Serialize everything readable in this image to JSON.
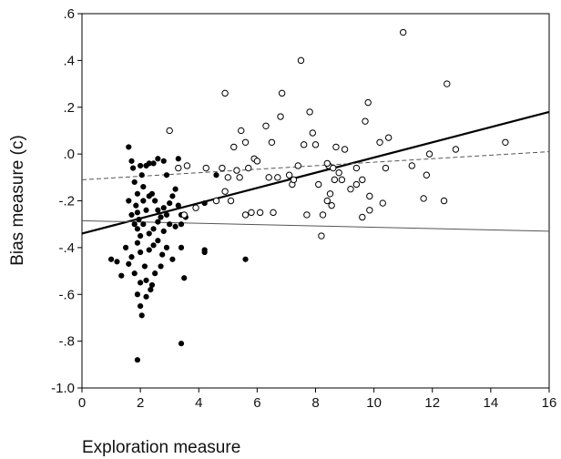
{
  "chart_data": {
    "type": "scatter",
    "title": "",
    "xlabel": "Exploration measure",
    "ylabel": "Bias measure (c)",
    "xlim": [
      0,
      16
    ],
    "ylim": [
      -1.0,
      0.6
    ],
    "xticks": [
      0,
      2,
      4,
      6,
      8,
      10,
      12,
      14,
      16
    ],
    "xtick_labels": [
      "0",
      "2",
      "4",
      "6",
      "8",
      "10",
      "12",
      "14",
      "16"
    ],
    "yticks": [
      0.6,
      0.4,
      0.2,
      0.0,
      -0.2,
      -0.4,
      -0.6,
      -0.8,
      -1.0
    ],
    "ytick_labels": [
      ".6",
      ".4",
      ".2",
      ".0",
      "-.2",
      "-.4",
      "-.6",
      "-.8",
      "-1.0"
    ],
    "grid": false,
    "series": [
      {
        "marker": "filled-circle",
        "color": "#000000",
        "points": [
          [
            1.6,
            0.03
          ],
          [
            1.7,
            -0.03
          ],
          [
            1.75,
            -0.06
          ],
          [
            1.8,
            -0.12
          ],
          [
            1.9,
            -0.17
          ],
          [
            2.0,
            -0.05
          ],
          [
            2.05,
            -0.09
          ],
          [
            2.1,
            -0.14
          ],
          [
            2.2,
            -0.05
          ],
          [
            2.3,
            -0.04
          ],
          [
            2.45,
            -0.04
          ],
          [
            2.6,
            -0.02
          ],
          [
            2.8,
            -0.03
          ],
          [
            2.9,
            -0.09
          ],
          [
            1.6,
            -0.2
          ],
          [
            1.7,
            -0.26
          ],
          [
            1.85,
            -0.22
          ],
          [
            1.95,
            -0.28
          ],
          [
            2.1,
            -0.2
          ],
          [
            2.2,
            -0.24
          ],
          [
            2.3,
            -0.18
          ],
          [
            2.4,
            -0.17
          ],
          [
            2.5,
            -0.2
          ],
          [
            2.6,
            -0.24
          ],
          [
            2.7,
            -0.27
          ],
          [
            2.8,
            -0.23
          ],
          [
            2.9,
            -0.26
          ],
          [
            3.0,
            -0.21
          ],
          [
            3.1,
            -0.18
          ],
          [
            3.2,
            -0.15
          ],
          [
            3.3,
            -0.22
          ],
          [
            3.4,
            -0.26
          ],
          [
            1.8,
            -0.3
          ],
          [
            1.9,
            -0.32
          ],
          [
            2.0,
            -0.35
          ],
          [
            2.1,
            -0.3
          ],
          [
            2.3,
            -0.34
          ],
          [
            2.45,
            -0.32
          ],
          [
            2.6,
            -0.29
          ],
          [
            2.8,
            -0.33
          ],
          [
            3.0,
            -0.3
          ],
          [
            3.2,
            -0.31
          ],
          [
            3.4,
            -0.3
          ],
          [
            3.55,
            -0.27
          ],
          [
            1.0,
            -0.45
          ],
          [
            1.2,
            -0.46
          ],
          [
            1.35,
            -0.52
          ],
          [
            1.5,
            -0.4
          ],
          [
            1.7,
            -0.44
          ],
          [
            1.9,
            -0.38
          ],
          [
            2.0,
            -0.42
          ],
          [
            2.15,
            -0.48
          ],
          [
            2.3,
            -0.41
          ],
          [
            2.45,
            -0.39
          ],
          [
            2.6,
            -0.37
          ],
          [
            2.75,
            -0.43
          ],
          [
            2.9,
            -0.4
          ],
          [
            3.1,
            -0.45
          ],
          [
            3.4,
            -0.4
          ],
          [
            3.5,
            -0.53
          ],
          [
            1.6,
            -0.47
          ],
          [
            1.8,
            -0.51
          ],
          [
            2.0,
            -0.55
          ],
          [
            2.2,
            -0.54
          ],
          [
            2.35,
            -0.58
          ],
          [
            2.5,
            -0.51
          ],
          [
            2.7,
            -0.48
          ],
          [
            1.9,
            -0.6
          ],
          [
            2.0,
            -0.65
          ],
          [
            2.05,
            -0.69
          ],
          [
            2.2,
            -0.61
          ],
          [
            2.4,
            -0.56
          ],
          [
            1.9,
            -0.88
          ],
          [
            3.4,
            -0.81
          ],
          [
            5.6,
            -0.45
          ],
          [
            4.2,
            -0.41
          ],
          [
            4.2,
            -0.42
          ],
          [
            4.6,
            -0.09
          ],
          [
            4.2,
            -0.21
          ],
          [
            3.3,
            -0.02
          ],
          [
            1.9,
            -0.25
          ]
        ]
      },
      {
        "marker": "open-circle",
        "color": "#000000",
        "points": [
          [
            3.0,
            0.1
          ],
          [
            3.3,
            -0.06
          ],
          [
            3.6,
            -0.05
          ],
          [
            3.9,
            -0.23
          ],
          [
            4.25,
            -0.06
          ],
          [
            4.8,
            -0.06
          ],
          [
            4.9,
            -0.16
          ],
          [
            4.9,
            0.26
          ],
          [
            5.1,
            -0.2
          ],
          [
            5.2,
            0.03
          ],
          [
            5.3,
            -0.07
          ],
          [
            5.4,
            -0.1
          ],
          [
            5.45,
            0.1
          ],
          [
            5.6,
            0.05
          ],
          [
            5.6,
            -0.26
          ],
          [
            5.7,
            -0.06
          ],
          [
            5.8,
            -0.25
          ],
          [
            5.9,
            -0.02
          ],
          [
            6.0,
            -0.03
          ],
          [
            6.1,
            -0.25
          ],
          [
            6.3,
            0.12
          ],
          [
            6.4,
            -0.1
          ],
          [
            6.5,
            0.05
          ],
          [
            6.55,
            -0.25
          ],
          [
            6.8,
            0.16
          ],
          [
            6.85,
            0.26
          ],
          [
            7.1,
            -0.09
          ],
          [
            7.2,
            -0.13
          ],
          [
            7.25,
            -0.11
          ],
          [
            7.4,
            -0.05
          ],
          [
            7.5,
            0.4
          ],
          [
            7.6,
            0.04
          ],
          [
            7.7,
            -0.26
          ],
          [
            7.8,
            0.18
          ],
          [
            7.9,
            0.09
          ],
          [
            8.0,
            0.04
          ],
          [
            8.1,
            -0.13
          ],
          [
            8.2,
            -0.35
          ],
          [
            8.25,
            -0.26
          ],
          [
            8.4,
            -0.2
          ],
          [
            8.45,
            -0.05
          ],
          [
            8.5,
            -0.17
          ],
          [
            8.55,
            -0.22
          ],
          [
            8.6,
            -0.06
          ],
          [
            8.65,
            -0.11
          ],
          [
            8.7,
            0.03
          ],
          [
            8.8,
            -0.08
          ],
          [
            8.9,
            -0.11
          ],
          [
            9.0,
            0.02
          ],
          [
            9.2,
            -0.15
          ],
          [
            9.4,
            -0.13
          ],
          [
            9.6,
            -0.27
          ],
          [
            9.7,
            0.14
          ],
          [
            9.8,
            0.22
          ],
          [
            9.85,
            -0.24
          ],
          [
            9.85,
            -0.18
          ],
          [
            10.2,
            0.05
          ],
          [
            10.3,
            -0.21
          ],
          [
            10.5,
            0.07
          ],
          [
            10.4,
            -0.06
          ],
          [
            11.0,
            0.52
          ],
          [
            11.3,
            -0.05
          ],
          [
            11.7,
            -0.19
          ],
          [
            11.8,
            -0.09
          ],
          [
            11.9,
            0.0
          ],
          [
            12.4,
            -0.2
          ],
          [
            12.5,
            0.3
          ],
          [
            12.8,
            0.02
          ],
          [
            14.5,
            0.05
          ],
          [
            3.5,
            -0.26
          ],
          [
            4.6,
            -0.2
          ],
          [
            5.0,
            -0.1
          ],
          [
            6.7,
            -0.1
          ],
          [
            8.4,
            -0.04
          ],
          [
            9.6,
            -0.11
          ],
          [
            9.4,
            -0.06
          ]
        ]
      }
    ],
    "lines": [
      {
        "style": "solid",
        "width": 2.2,
        "x": [
          0,
          16
        ],
        "y": [
          -0.34,
          0.18
        ]
      },
      {
        "style": "dashed",
        "width": 1.0,
        "color": "#555555",
        "x": [
          0,
          16
        ],
        "y": [
          -0.11,
          0.01
        ]
      },
      {
        "style": "solid",
        "width": 1.0,
        "color": "#555555",
        "x": [
          0,
          16
        ],
        "y": [
          -0.285,
          -0.33
        ]
      }
    ]
  }
}
